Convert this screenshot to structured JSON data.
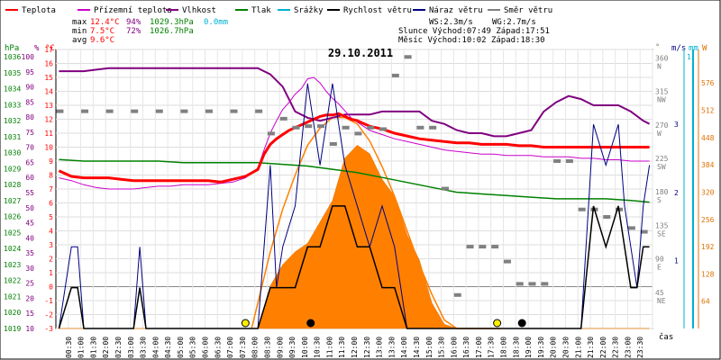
{
  "chart_data": {
    "type": "line",
    "title": "29.10.2011",
    "legend": [
      {
        "name": "Teplota",
        "color": "#ff0000"
      },
      {
        "name": "Přízemní teplota",
        "color": "#cc00cc"
      },
      {
        "name": "Vlhkost",
        "color": "#800080"
      },
      {
        "name": "Tlak",
        "color": "#008000"
      },
      {
        "name": "Srážky",
        "color": "#00b0d0"
      },
      {
        "name": "Rychlost větru",
        "color": "#000000"
      },
      {
        "name": "Náraz větru",
        "color": "#000080"
      },
      {
        "name": "Směr větru",
        "color": "#808080"
      }
    ],
    "stats": {
      "max": {
        "label": "max",
        "temp": "12.4°C",
        "hum": "94%",
        "press": "1029.3hPa",
        "rain": "0.0mm"
      },
      "min": {
        "label": "min",
        "temp": "7.5°C",
        "hum": "72%",
        "press": "1026.7hPa"
      },
      "avg": {
        "label": "avg",
        "temp": "9.6°C"
      }
    },
    "info": {
      "ws": "WS:2.3m/s",
      "wg": "WG:2.7m/s",
      "sun": "Slunce Východ:07:49  Západ:17:51",
      "moon": "Měsíc  Východ:10:02  Západ:18:30"
    },
    "axes_left": {
      "hpa": {
        "label": "hPa",
        "ticks": [
          "1036",
          "1035",
          "1034",
          "1033",
          "1032",
          "1031",
          "1030",
          "1029",
          "1028",
          "1027",
          "1026",
          "1025",
          "1024",
          "1023",
          "1022",
          "1021",
          "1020",
          "1019"
        ]
      },
      "pct": {
        "label": "%",
        "ticks": [
          "100",
          "95",
          "90",
          "85",
          "80",
          "75",
          "70",
          "65",
          "60",
          "55",
          "50",
          "45",
          "40",
          "35",
          "30",
          "25",
          "20",
          "15",
          "10"
        ]
      },
      "temp": {
        "label": "°C",
        "ticks": [
          "17",
          "16",
          "15",
          "14",
          "13",
          "12",
          "11",
          "10",
          "9",
          "8",
          "7",
          "6",
          "5",
          "4",
          "3",
          "2",
          "1",
          "0",
          "-1",
          "-2",
          "-3"
        ],
        "range": [
          -3,
          17
        ]
      }
    },
    "axes_right": {
      "dir": {
        "label": "°",
        "ticks": [
          "360",
          "315",
          "270",
          "225",
          "180",
          "135",
          "90",
          "45"
        ],
        "letters": [
          "N",
          "NW",
          "W",
          "SW",
          "S",
          "SE",
          "E",
          "NE"
        ]
      },
      "wind": {
        "label": "m/s",
        "ticks": [
          "3",
          "2",
          "1"
        ],
        "range": [
          0,
          4.1
        ]
      },
      "rain": {
        "label": "mm",
        "ticks": [
          "1"
        ]
      },
      "solar": {
        "label": "W",
        "ticks": [
          "576",
          "512",
          "448",
          "384",
          "320",
          "256",
          "192",
          "128",
          "64"
        ],
        "range": [
          0,
          576
        ]
      }
    },
    "x_ticks": [
      "00:30",
      "01:00",
      "01:30",
      "02:00",
      "02:30",
      "03:00",
      "03:30",
      "04:00",
      "04:30",
      "05:00",
      "05:30",
      "06:00",
      "06:30",
      "07:00",
      "07:30",
      "08:00",
      "08:30",
      "09:00",
      "09:30",
      "10:00",
      "10:30",
      "11:00",
      "11:30",
      "12:00",
      "12:30",
      "13:00",
      "13:30",
      "14:00",
      "14:30",
      "15:00",
      "15:30",
      "16:00",
      "16:30",
      "17:00",
      "17:30",
      "18:00",
      "18:30",
      "19:00",
      "19:30",
      "20:00",
      "20:30",
      "21:00",
      "21:30",
      "22:00",
      "22:30",
      "23:00",
      "23:30"
    ],
    "x_label": "čas",
    "series": {
      "temperature": {
        "x": [
          0,
          2,
          4,
          6,
          8,
          10,
          12,
          14,
          16,
          18,
          20,
          22,
          24,
          26,
          28,
          30,
          32,
          33,
          34,
          35,
          36,
          37,
          38,
          39,
          40,
          41,
          42,
          43,
          44,
          45,
          46,
          47,
          48,
          49,
          50,
          52,
          54,
          56,
          58,
          60,
          62,
          64,
          66,
          68,
          70,
          72,
          74,
          76,
          78,
          80,
          82,
          84,
          86,
          88,
          90,
          92,
          94,
          95
        ],
        "y": [
          8.3,
          7.9,
          7.8,
          7.8,
          7.8,
          7.7,
          7.6,
          7.6,
          7.6,
          7.6,
          7.6,
          7.6,
          7.6,
          7.5,
          7.7,
          7.9,
          8.4,
          9.5,
          10.2,
          10.6,
          10.9,
          11.2,
          11.4,
          11.6,
          11.8,
          12.0,
          12.2,
          12.3,
          12.3,
          12.4,
          12.2,
          12.0,
          11.9,
          11.7,
          11.5,
          11.3,
          11.0,
          10.8,
          10.6,
          10.5,
          10.4,
          10.3,
          10.3,
          10.2,
          10.2,
          10.2,
          10.1,
          10.1,
          10.0,
          10.0,
          10.0,
          10.0,
          10.0,
          10.0,
          10.0,
          10.0,
          10.0,
          10.0
        ]
      },
      "ground_temperature": {
        "x": [
          0,
          2,
          4,
          6,
          8,
          10,
          12,
          14,
          16,
          18,
          20,
          22,
          24,
          26,
          28,
          30,
          32,
          33,
          34,
          35,
          36,
          37,
          38,
          39,
          40,
          41,
          42,
          43,
          44,
          45,
          46,
          47,
          48,
          49,
          50,
          52,
          54,
          56,
          58,
          60,
          62,
          64,
          66,
          68,
          70,
          72,
          74,
          76,
          78,
          80,
          82,
          84,
          86,
          88,
          90,
          92,
          94,
          95
        ],
        "y": [
          7.8,
          7.6,
          7.3,
          7.1,
          7.0,
          7.0,
          7.0,
          7.1,
          7.2,
          7.2,
          7.3,
          7.3,
          7.3,
          7.4,
          7.5,
          7.8,
          8.5,
          9.8,
          11.0,
          11.9,
          12.7,
          13.2,
          13.8,
          14.2,
          14.9,
          15.0,
          14.6,
          14.0,
          13.5,
          13.1,
          12.6,
          12.1,
          11.8,
          11.5,
          11.2,
          10.9,
          10.6,
          10.4,
          10.2,
          10.0,
          9.8,
          9.7,
          9.6,
          9.5,
          9.5,
          9.4,
          9.4,
          9.4,
          9.3,
          9.3,
          9.3,
          9.2,
          9.2,
          9.1,
          9.1,
          9.0,
          9.0,
          9.0
        ]
      },
      "humidity": {
        "x": [
          0,
          2,
          4,
          6,
          8,
          10,
          12,
          14,
          16,
          18,
          20,
          22,
          24,
          26,
          28,
          30,
          32,
          34,
          36,
          38,
          40,
          42,
          44,
          46,
          48,
          50,
          52,
          54,
          56,
          58,
          60,
          62,
          64,
          66,
          68,
          70,
          72,
          74,
          76,
          78,
          80,
          82,
          84,
          86,
          88,
          90,
          92,
          94,
          95
        ],
        "y": [
          93,
          93,
          93,
          93.5,
          94,
          94,
          94,
          94,
          94,
          94,
          94,
          94,
          94,
          94,
          94,
          94,
          94,
          92,
          88,
          80,
          78,
          77,
          78,
          79,
          79,
          79,
          80,
          80,
          80,
          80,
          77,
          76,
          74,
          73,
          73,
          72,
          72,
          73,
          74,
          80,
          83,
          85,
          84,
          82,
          82,
          82,
          80,
          77,
          76
        ]
      },
      "pressure": {
        "x": [
          0,
          4,
          8,
          12,
          16,
          20,
          24,
          28,
          32,
          36,
          40,
          44,
          48,
          52,
          56,
          60,
          64,
          68,
          72,
          76,
          80,
          84,
          88,
          92,
          95
        ],
        "y": [
          1029.3,
          1029.2,
          1029.2,
          1029.2,
          1029.2,
          1029.1,
          1029.1,
          1029.1,
          1029.1,
          1029.0,
          1028.9,
          1028.7,
          1028.5,
          1028.2,
          1027.9,
          1027.6,
          1027.3,
          1027.2,
          1027.1,
          1027.0,
          1026.9,
          1026.9,
          1026.9,
          1026.8,
          1026.7
        ]
      },
      "wind_speed": {
        "x": [
          0,
          2,
          3,
          4,
          12,
          13,
          14,
          16,
          22,
          26,
          32,
          34,
          36,
          38,
          40,
          42,
          44,
          46,
          48,
          50,
          52,
          54,
          56,
          58,
          60,
          62,
          64,
          68,
          72,
          76,
          80,
          84,
          86,
          88,
          90,
          91,
          92,
          93,
          94,
          95
        ],
        "y": [
          0,
          0.6,
          0.6,
          0,
          0,
          0.6,
          0,
          0,
          0,
          0,
          0,
          0.6,
          0.6,
          0.6,
          1.2,
          1.2,
          1.8,
          1.8,
          1.2,
          1.2,
          0.6,
          0.6,
          0,
          0,
          0,
          0,
          0,
          0,
          0,
          0,
          0,
          0,
          1.8,
          1.2,
          1.8,
          1.2,
          0.6,
          0.6,
          1.2,
          1.2
        ]
      },
      "wind_gust": {
        "x": [
          0,
          2,
          3,
          4,
          12,
          13,
          14,
          16,
          22,
          26,
          32,
          33,
          34,
          35,
          36,
          38,
          40,
          42,
          44,
          46,
          48,
          50,
          52,
          54,
          56,
          58,
          60,
          62,
          64,
          68,
          72,
          76,
          80,
          84,
          86,
          88,
          90,
          91,
          92,
          93,
          94,
          95
        ],
        "y": [
          0,
          1.2,
          1.2,
          0,
          0,
          1.2,
          0,
          0,
          0,
          0,
          0,
          1.2,
          2.4,
          0.6,
          1.2,
          1.8,
          3.6,
          2.4,
          3.6,
          2.4,
          1.8,
          1.2,
          1.8,
          1.2,
          0,
          0,
          0,
          0,
          0,
          0,
          0,
          0,
          0,
          0,
          3.0,
          2.4,
          3.0,
          1.8,
          1.2,
          0.6,
          1.8,
          2.4
        ]
      },
      "wind_direction": {
        "x": [
          0,
          4,
          8,
          12,
          16,
          20,
          24,
          28,
          32,
          34,
          36,
          38,
          40,
          42,
          44,
          46,
          48,
          50,
          52,
          54,
          56,
          58,
          60,
          62,
          64,
          66,
          68,
          70,
          72,
          74,
          76,
          78,
          80,
          82,
          84,
          86,
          88,
          90,
          92,
          94
        ],
        "y": [
          292,
          292,
          292,
          292,
          292,
          292,
          292,
          292,
          292,
          262,
          282,
          270,
          272,
          272,
          248,
          270,
          262,
          270,
          268,
          340,
          365,
          270,
          270,
          188,
          45,
          110,
          110,
          110,
          90,
          60,
          60,
          60,
          225,
          225,
          160,
          160,
          150,
          160,
          135,
          130
        ]
      },
      "solar": {
        "x": [
          0,
          32,
          34,
          36,
          38,
          40,
          42,
          44,
          46,
          48,
          50,
          52,
          54,
          56,
          58,
          60,
          62,
          64,
          66,
          68,
          70,
          72,
          74,
          76,
          78,
          80,
          82,
          84,
          86,
          88,
          90,
          92,
          94,
          95
        ],
        "y": [
          0,
          0,
          100,
          150,
          180,
          200,
          250,
          300,
          400,
          430,
          410,
          350,
          310,
          220,
          160,
          60,
          10,
          0,
          0,
          0,
          0,
          0,
          0,
          0,
          0,
          0,
          0,
          0,
          0,
          0,
          0,
          0,
          0,
          0
        ]
      },
      "theoretical_solar": {
        "x": [
          31,
          32,
          34,
          36,
          38,
          40,
          42,
          44,
          46,
          48,
          50,
          52,
          54,
          56,
          58,
          60,
          62,
          64,
          66,
          68,
          70,
          71
        ],
        "y": [
          0,
          60,
          180,
          280,
          360,
          430,
          470,
          495,
          495,
          480,
          440,
          380,
          310,
          230,
          150,
          80,
          20,
          0,
          0,
          0,
          0,
          0
        ]
      },
      "precipitation": {
        "x": [
          0,
          95
        ],
        "y": [
          0,
          0
        ]
      }
    },
    "markers": {
      "sunrise_icon": "yellow-circle",
      "sunset_icon": "yellow-circle",
      "moonrise_icon": "black-circle",
      "moonset_icon": "black-circle"
    }
  }
}
